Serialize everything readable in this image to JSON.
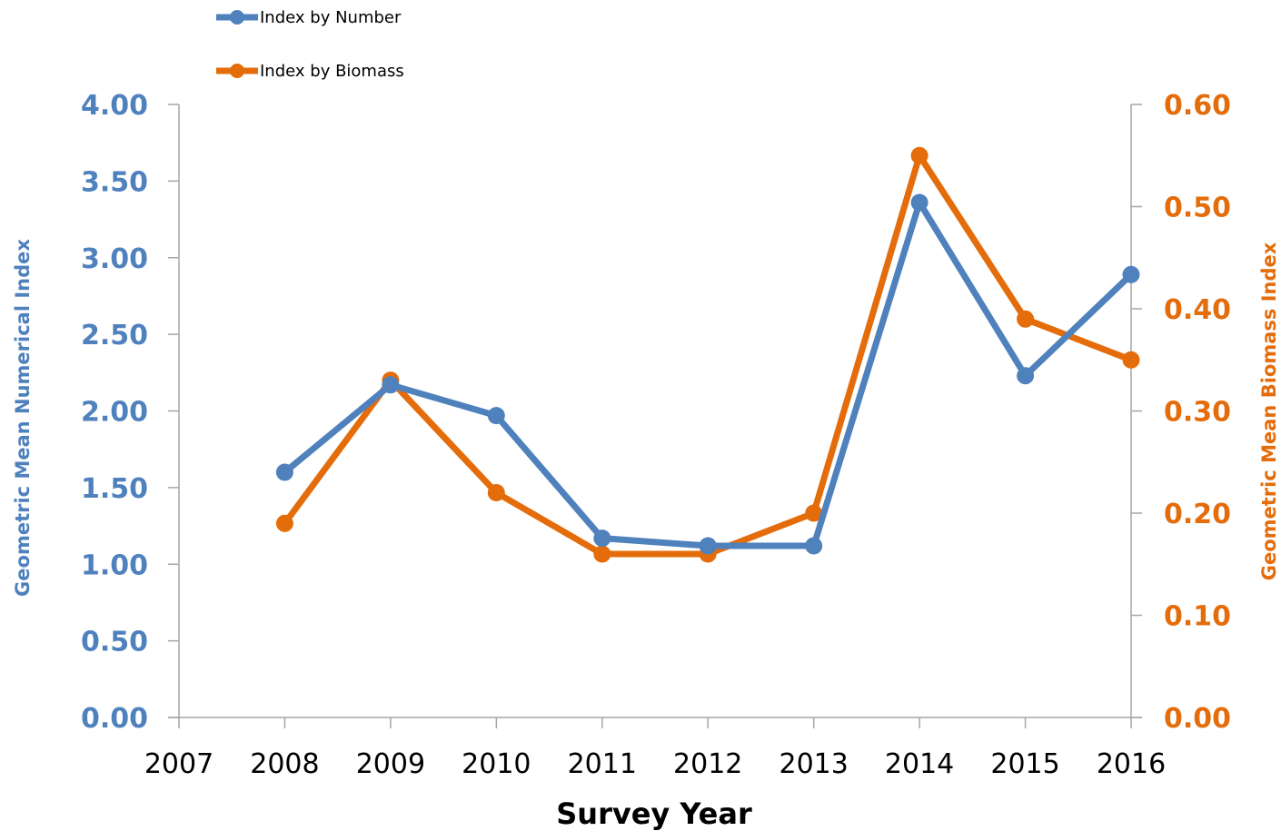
{
  "chart_data": {
    "type": "line",
    "x": [
      2008,
      2009,
      2010,
      2011,
      2012,
      2013,
      2014,
      2015,
      2016
    ],
    "x_ticks": [
      "2007",
      "2008",
      "2009",
      "2010",
      "2011",
      "2012",
      "2013",
      "2014",
      "2015",
      "2016"
    ],
    "xlabel": "Survey Year",
    "ylabel_left": "Geometric Mean Numerical Index",
    "ylabel_right": "Geometric Mean Biomass Index",
    "ylim_left": [
      0,
      4
    ],
    "ylim_right": [
      0,
      0.6
    ],
    "yticks_left": [
      "0.00",
      "0.50",
      "1.00",
      "1.50",
      "2.00",
      "2.50",
      "3.00",
      "3.50",
      "4.00"
    ],
    "yticks_right": [
      "0.00",
      "0.10",
      "0.20",
      "0.30",
      "0.40",
      "0.50",
      "0.60"
    ],
    "grid": false,
    "legend_position": "top-left",
    "series": [
      {
        "name": "Index by Number",
        "axis": "left",
        "color": "#4f81bd",
        "values": [
          1.6,
          2.17,
          1.97,
          1.17,
          1.12,
          1.12,
          3.36,
          2.23,
          2.89
        ]
      },
      {
        "name": "Index by Biomass",
        "axis": "right",
        "color": "#e46c0a",
        "values": [
          0.19,
          0.33,
          0.22,
          0.16,
          0.16,
          0.2,
          0.55,
          0.39,
          0.35
        ]
      }
    ]
  }
}
